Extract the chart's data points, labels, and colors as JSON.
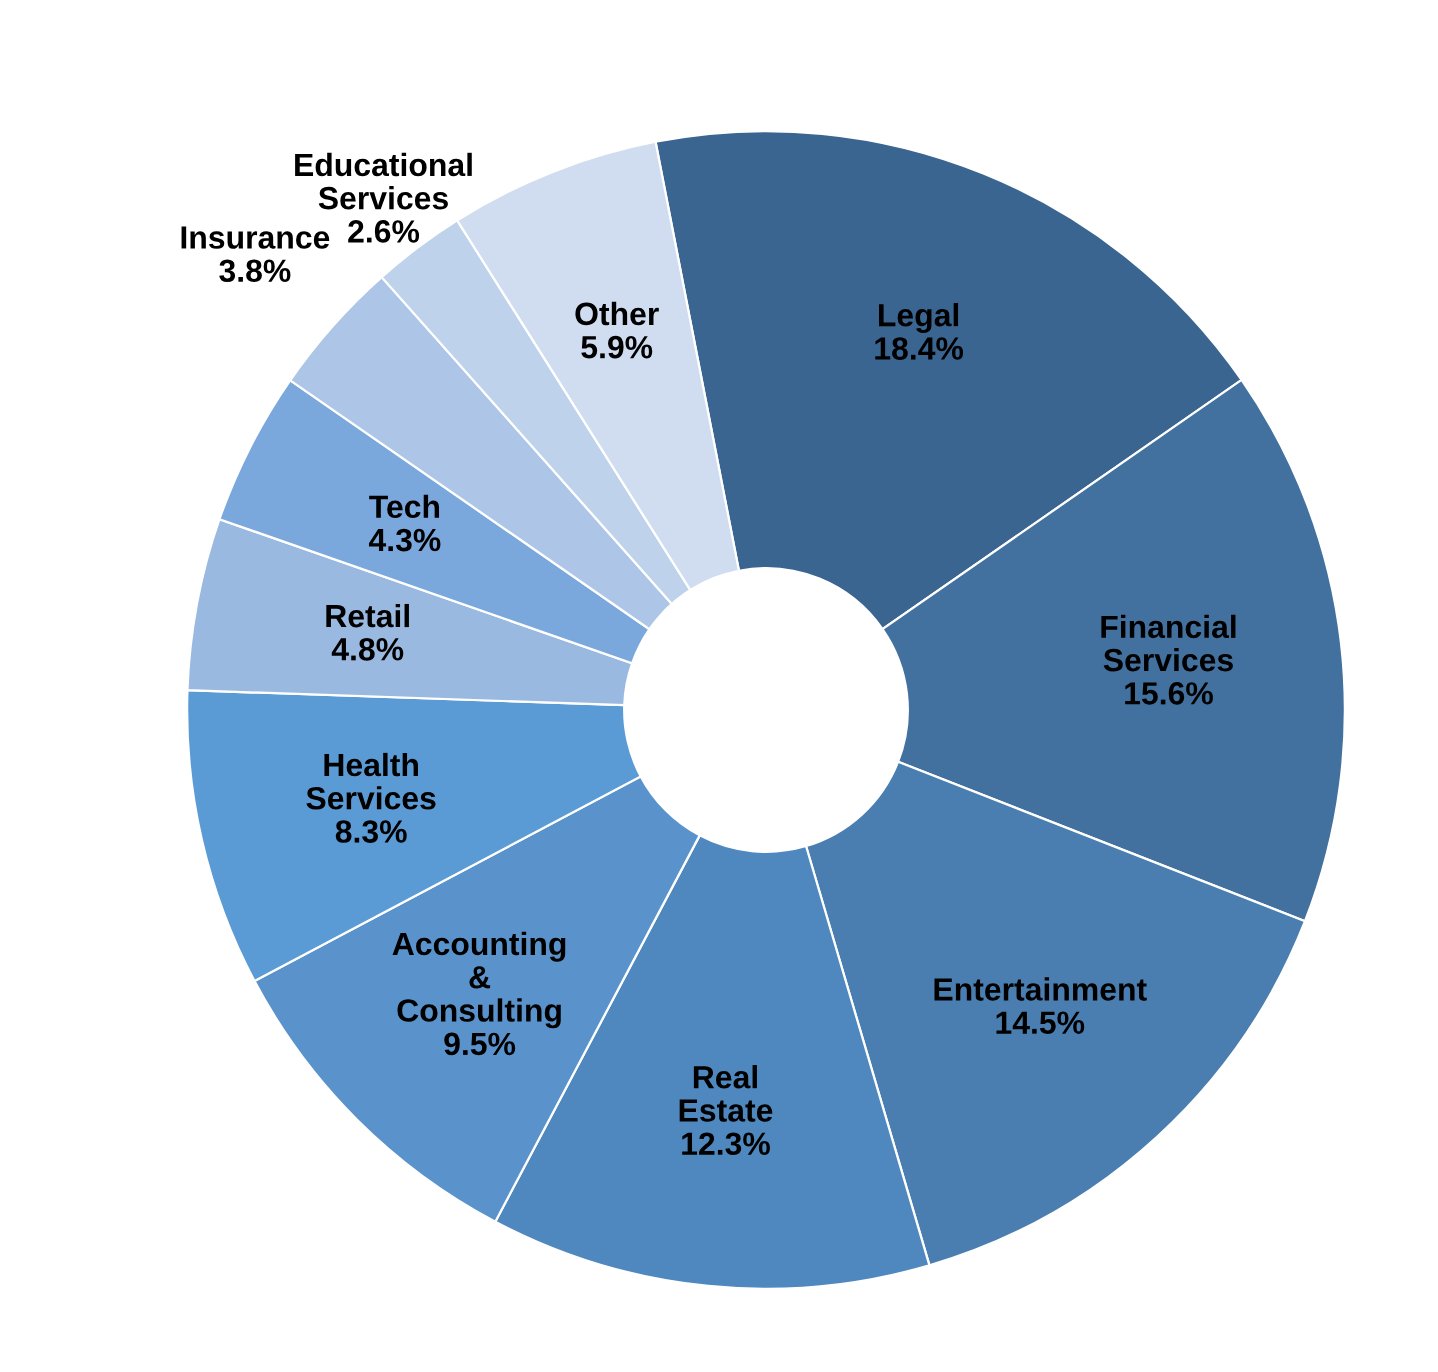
{
  "chart_data": {
    "type": "donut",
    "categories": [
      "Legal",
      "Financial Services",
      "Entertainment",
      "Real Estate",
      "Accounting & Consulting",
      "Health Services",
      "Retail",
      "Tech",
      "Insurance",
      "Educational Services",
      "Other"
    ],
    "values": [
      18.4,
      15.6,
      14.5,
      12.3,
      9.5,
      8.3,
      4.8,
      4.3,
      3.8,
      2.6,
      5.9
    ],
    "colors": [
      "#3a6591",
      "#42719f",
      "#4a7eb0",
      "#4f88bf",
      "#5a93cc",
      "#5b9bd5",
      "#9ab9e0",
      "#7aa7dc",
      "#adc5e6",
      "#bfd2ec",
      "#d0ddf0"
    ],
    "value_labels": [
      "18.4%",
      "15.6%",
      "14.5%",
      "12.3%",
      "9.5%",
      "8.3%",
      "4.8%",
      "4.3%",
      "3.8%",
      "2.6%",
      "5.9%"
    ],
    "legend": false
  }
}
